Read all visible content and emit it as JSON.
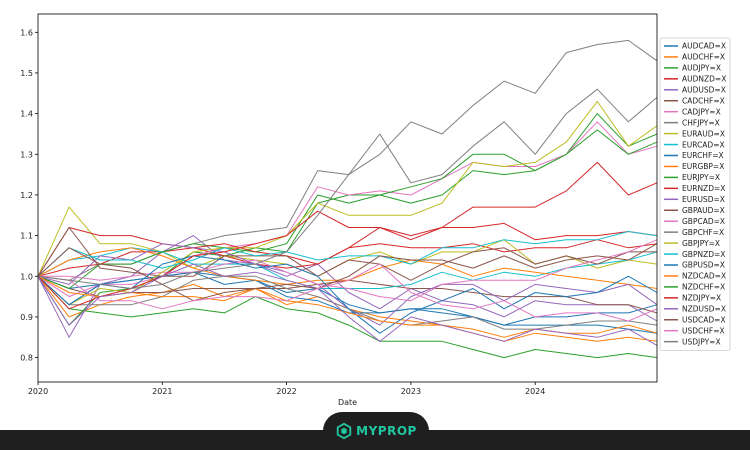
{
  "chart_data": {
    "type": "line",
    "title": "",
    "xlabel": "Date",
    "ylabel": "",
    "xlim": [
      2020.0,
      2024.98
    ],
    "ylim": [
      0.74,
      1.645
    ],
    "x_ticks": [
      2020,
      2021,
      2022,
      2023,
      2024
    ],
    "x_tick_labels": [
      "2020",
      "2021",
      "2022",
      "2023",
      "2024"
    ],
    "y_ticks": [
      0.8,
      0.9,
      1.0,
      1.1,
      1.2,
      1.3,
      1.4,
      1.5,
      1.6
    ],
    "y_tick_labels": [
      "0.8",
      "0.9",
      "1.0",
      "1.1",
      "1.2",
      "1.3",
      "1.4",
      "1.5",
      "1.6"
    ],
    "grid": false,
    "legend_placement": "right",
    "x": [
      2020.0,
      2020.25,
      2020.5,
      2020.75,
      2021.0,
      2021.25,
      2021.5,
      2021.75,
      2022.0,
      2022.25,
      2022.5,
      2022.75,
      2023.0,
      2023.25,
      2023.5,
      2023.75,
      2024.0,
      2024.25,
      2024.5,
      2024.75,
      2024.98
    ],
    "series": [
      {
        "name": "AUDCAD=X",
        "color": "#1f77b4",
        "values": [
          1.0,
          0.93,
          0.98,
          0.99,
          1.0,
          1.01,
          0.98,
          0.99,
          0.96,
          0.97,
          0.93,
          0.91,
          0.92,
          0.91,
          0.9,
          0.88,
          0.9,
          0.9,
          0.91,
          0.91,
          0.93
        ]
      },
      {
        "name": "AUDCHF=X",
        "color": "#ff7f0e",
        "values": [
          1.0,
          0.9,
          0.93,
          0.95,
          0.96,
          0.98,
          0.95,
          0.97,
          0.93,
          0.95,
          0.92,
          0.9,
          0.89,
          0.88,
          0.86,
          0.84,
          0.86,
          0.85,
          0.84,
          0.85,
          0.84
        ]
      },
      {
        "name": "AUDJPY=X",
        "color": "#2ca02c",
        "values": [
          1.0,
          0.88,
          0.96,
          0.97,
          1.0,
          1.06,
          1.05,
          1.07,
          1.06,
          1.18,
          1.2,
          1.2,
          1.18,
          1.2,
          1.26,
          1.25,
          1.26,
          1.3,
          1.4,
          1.32,
          1.35
        ]
      },
      {
        "name": "AUDNZD=X",
        "color": "#d62728",
        "values": [
          1.0,
          1.02,
          1.03,
          1.06,
          1.06,
          1.07,
          1.05,
          1.03,
          1.02,
          1.03,
          1.07,
          1.08,
          1.07,
          1.07,
          1.08,
          1.06,
          1.07,
          1.07,
          1.09,
          1.07,
          1.08
        ]
      },
      {
        "name": "AUDUSD=X",
        "color": "#9467bd",
        "values": [
          1.0,
          0.85,
          0.98,
          1.0,
          1.06,
          1.1,
          1.04,
          1.03,
          1.0,
          1.03,
          0.96,
          0.92,
          0.97,
          0.94,
          0.93,
          0.9,
          0.94,
          0.93,
          0.93,
          0.93,
          0.89
        ]
      },
      {
        "name": "CADCHF=X",
        "color": "#8c564b",
        "values": [
          1.0,
          0.97,
          0.95,
          0.96,
          0.96,
          0.97,
          0.97,
          0.97,
          0.97,
          0.98,
          0.99,
          0.98,
          0.97,
          0.97,
          0.96,
          0.95,
          0.95,
          0.95,
          0.93,
          0.93,
          0.91
        ]
      },
      {
        "name": "CADJPY=X",
        "color": "#e377c2",
        "values": [
          1.0,
          0.95,
          0.98,
          0.98,
          1.0,
          1.05,
          1.07,
          1.08,
          1.1,
          1.22,
          1.2,
          1.21,
          1.2,
          1.24,
          1.28,
          1.27,
          1.27,
          1.3,
          1.38,
          1.3,
          1.32
        ]
      },
      {
        "name": "CHFJPY=X",
        "color": "#7f7f7f",
        "values": [
          1.0,
          0.99,
          1.03,
          1.03,
          1.06,
          1.08,
          1.1,
          1.11,
          1.12,
          1.26,
          1.25,
          1.3,
          1.38,
          1.35,
          1.42,
          1.48,
          1.45,
          1.55,
          1.57,
          1.58,
          1.53
        ]
      },
      {
        "name": "EURAUD=X",
        "color": "#bcbd22",
        "values": [
          1.0,
          1.17,
          1.08,
          1.08,
          1.06,
          1.02,
          1.05,
          1.04,
          1.03,
          1.0,
          1.04,
          1.06,
          1.03,
          1.06,
          1.06,
          1.09,
          1.03,
          1.05,
          1.02,
          1.04,
          1.03
        ]
      },
      {
        "name": "EURCAD=X",
        "color": "#17becf",
        "values": [
          1.0,
          1.04,
          1.05,
          1.07,
          1.06,
          1.03,
          1.03,
          1.03,
          0.99,
          0.97,
          0.97,
          0.97,
          0.98,
          1.01,
          0.99,
          1.01,
          1.0,
          1.02,
          1.03,
          1.04,
          1.06
        ]
      },
      {
        "name": "EURCHF=X",
        "color": "#1f77b4",
        "values": [
          1.0,
          0.97,
          0.98,
          0.99,
          1.0,
          1.01,
          1.0,
          0.99,
          0.95,
          0.94,
          0.91,
          0.91,
          0.92,
          0.92,
          0.9,
          0.88,
          0.88,
          0.88,
          0.88,
          0.87,
          0.86
        ]
      },
      {
        "name": "EURGBP=X",
        "color": "#ff7f0e",
        "values": [
          1.0,
          1.04,
          1.06,
          1.07,
          1.05,
          1.02,
          1.0,
          0.99,
          0.98,
          0.99,
          0.99,
          1.02,
          1.04,
          1.03,
          1.0,
          1.02,
          1.01,
          1.0,
          0.99,
          0.98,
          0.97
        ]
      },
      {
        "name": "EURJPY=X",
        "color": "#2ca02c",
        "values": [
          1.0,
          0.97,
          1.03,
          1.03,
          1.06,
          1.08,
          1.07,
          1.06,
          1.08,
          1.2,
          1.18,
          1.2,
          1.22,
          1.24,
          1.3,
          1.3,
          1.26,
          1.3,
          1.36,
          1.3,
          1.33
        ]
      },
      {
        "name": "EURNZD=X",
        "color": "#d62728",
        "values": [
          1.0,
          1.12,
          1.1,
          1.1,
          1.08,
          1.07,
          1.08,
          1.06,
          1.05,
          1.03,
          1.07,
          1.12,
          1.09,
          1.12,
          1.12,
          1.13,
          1.09,
          1.1,
          1.1,
          1.11,
          1.1
        ]
      },
      {
        "name": "EURUSD=X",
        "color": "#9467bd",
        "values": [
          1.0,
          0.98,
          1.05,
          1.04,
          1.08,
          1.07,
          1.06,
          1.03,
          1.01,
          0.98,
          0.92,
          0.88,
          0.95,
          0.98,
          0.98,
          0.94,
          0.98,
          0.97,
          0.96,
          0.98,
          0.93
        ]
      },
      {
        "name": "GBPAUD=X",
        "color": "#8c564b",
        "values": [
          1.0,
          1.12,
          1.02,
          1.01,
          1.0,
          1.0,
          1.05,
          1.05,
          1.05,
          1.0,
          1.04,
          1.03,
          0.99,
          1.03,
          1.06,
          1.07,
          1.03,
          1.05,
          1.03,
          1.06,
          1.06
        ]
      },
      {
        "name": "GBPCAD=X",
        "color": "#e377c2",
        "values": [
          1.0,
          1.0,
          0.99,
          1.0,
          1.01,
          1.01,
          1.03,
          1.04,
          1.01,
          0.98,
          0.97,
          0.95,
          0.94,
          0.98,
          0.99,
          0.99,
          0.99,
          1.02,
          1.04,
          1.06,
          1.09
        ]
      },
      {
        "name": "GBPCHF=X",
        "color": "#7f7f7f",
        "values": [
          1.0,
          0.93,
          0.93,
          0.93,
          0.95,
          0.99,
          1.0,
          1.0,
          0.97,
          0.95,
          0.92,
          0.89,
          0.88,
          0.89,
          0.9,
          0.87,
          0.87,
          0.88,
          0.89,
          0.89,
          0.88
        ]
      },
      {
        "name": "GBPJPY=X",
        "color": "#bcbd22",
        "values": [
          1.0,
          0.93,
          0.97,
          0.96,
          1.01,
          1.06,
          1.07,
          1.07,
          1.1,
          1.18,
          1.15,
          1.15,
          1.15,
          1.18,
          1.28,
          1.27,
          1.28,
          1.33,
          1.43,
          1.32,
          1.37
        ]
      },
      {
        "name": "GBPNZD=X",
        "color": "#17becf",
        "values": [
          1.0,
          1.07,
          1.04,
          1.04,
          1.02,
          1.04,
          1.07,
          1.05,
          1.06,
          1.04,
          1.05,
          1.05,
          1.03,
          1.07,
          1.07,
          1.09,
          1.08,
          1.09,
          1.09,
          1.11,
          1.1
        ]
      },
      {
        "name": "GBPUSD=X",
        "color": "#1f77b4",
        "values": [
          1.0,
          0.93,
          0.98,
          0.97,
          1.03,
          1.05,
          1.04,
          1.02,
          1.03,
          1.0,
          0.92,
          0.86,
          0.91,
          0.94,
          0.97,
          0.92,
          0.96,
          0.95,
          0.96,
          1.0,
          0.96
        ]
      },
      {
        "name": "NZDCAD=X",
        "color": "#ff7f0e",
        "values": [
          1.0,
          0.96,
          0.95,
          0.96,
          0.95,
          0.95,
          0.94,
          0.97,
          0.94,
          0.93,
          0.91,
          0.89,
          0.88,
          0.88,
          0.87,
          0.85,
          0.87,
          0.86,
          0.86,
          0.88,
          0.86
        ]
      },
      {
        "name": "NZDCHF=X",
        "color": "#2ca02c",
        "values": [
          1.0,
          0.92,
          0.91,
          0.9,
          0.91,
          0.92,
          0.91,
          0.95,
          0.92,
          0.91,
          0.88,
          0.84,
          0.84,
          0.84,
          0.82,
          0.8,
          0.82,
          0.81,
          0.8,
          0.81,
          0.8
        ]
      },
      {
        "name": "NZDJPY=X",
        "color": "#d62728",
        "values": [
          1.0,
          0.92,
          0.95,
          0.97,
          1.0,
          1.05,
          1.06,
          1.08,
          1.1,
          1.16,
          1.12,
          1.12,
          1.1,
          1.12,
          1.17,
          1.17,
          1.17,
          1.21,
          1.28,
          1.2,
          1.23
        ]
      },
      {
        "name": "NZDUSD=X",
        "color": "#9467bd",
        "values": [
          1.0,
          0.88,
          0.95,
          0.96,
          1.0,
          1.03,
          1.0,
          1.01,
          0.99,
          0.97,
          0.9,
          0.84,
          0.9,
          0.88,
          0.86,
          0.84,
          0.87,
          0.86,
          0.85,
          0.87,
          0.83
        ]
      },
      {
        "name": "USDCAD=X",
        "color": "#8c564b",
        "values": [
          1.0,
          1.07,
          1.03,
          1.02,
          0.98,
          0.94,
          0.96,
          0.97,
          0.98,
          0.97,
          1.0,
          1.05,
          1.04,
          1.04,
          1.02,
          1.05,
          1.02,
          1.04,
          1.05,
          1.04,
          1.08
        ]
      },
      {
        "name": "USDCHF=X",
        "color": "#e377c2",
        "values": [
          1.0,
          0.99,
          0.94,
          0.94,
          0.92,
          0.94,
          0.95,
          0.95,
          0.94,
          0.97,
          0.99,
          1.03,
          0.96,
          0.93,
          0.92,
          0.94,
          0.9,
          0.91,
          0.91,
          0.89,
          0.92
        ]
      },
      {
        "name": "USDJPY=X",
        "color": "#7f7f7f",
        "values": [
          1.0,
          0.99,
          0.98,
          0.97,
          0.98,
          1.01,
          1.02,
          1.03,
          1.06,
          1.15,
          1.25,
          1.35,
          1.23,
          1.25,
          1.32,
          1.38,
          1.3,
          1.4,
          1.46,
          1.38,
          1.44
        ]
      }
    ]
  },
  "footer": {
    "brand_name": "MYPROP",
    "brand_color": "#21c7a0",
    "brand_icon": "myprop-logo-icon"
  }
}
